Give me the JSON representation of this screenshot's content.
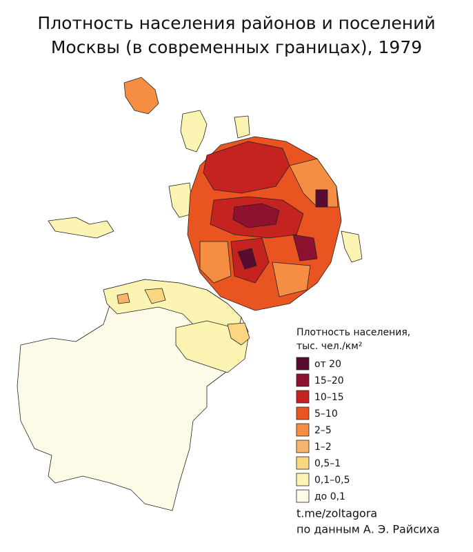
{
  "header": {
    "title_lines": [
      "Плотность населения районов и поселений",
      "Москвы (в современных границах), 1979"
    ]
  },
  "legend": {
    "title_lines": [
      "Плотность населения,",
      "тыс. чел./км²"
    ],
    "items": [
      {
        "label": "от 20",
        "color": "#5a0b31"
      },
      {
        "label": "15–20",
        "color": "#8e1230"
      },
      {
        "label": "10–15",
        "color": "#c4231f"
      },
      {
        "label": "5–10",
        "color": "#ea5420"
      },
      {
        "label": "2–5",
        "color": "#f58e42"
      },
      {
        "label": "1–2",
        "color": "#f8b46c"
      },
      {
        "label": "0,5–1",
        "color": "#fbd680"
      },
      {
        "label": "0,1–0,5",
        "color": "#fbf4b2"
      },
      {
        "label": "до 0,1",
        "color": "#fdfbe7"
      }
    ]
  },
  "credits": [
    "t.me/zoltagora",
    "по данным А. Э. Райсиха"
  ]
}
